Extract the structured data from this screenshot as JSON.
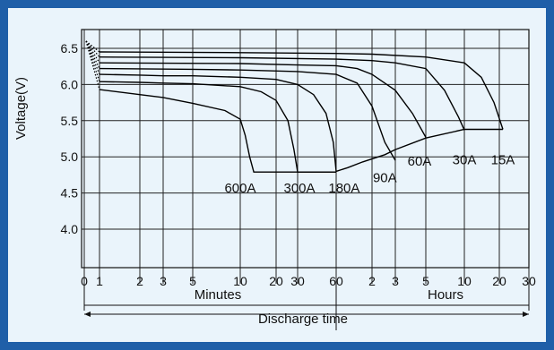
{
  "chart_data": {
    "type": "line",
    "ylabel": "Voltage(V)",
    "xlabel": "Discharge time",
    "x_groups": [
      {
        "label": "Minutes",
        "unit": "min"
      },
      {
        "label": "Hours",
        "unit": "h"
      }
    ],
    "y_ticks": [
      "6.5",
      "6.0",
      "5.5",
      "5.0",
      "4.5",
      "4.0"
    ],
    "x_ticks": [
      {
        "label": "0",
        "t_min": 0
      },
      {
        "label": "1",
        "t_min": 1
      },
      {
        "label": "2",
        "t_min": 2
      },
      {
        "label": "3",
        "t_min": 3
      },
      {
        "label": "5",
        "t_min": 5
      },
      {
        "label": "10",
        "t_min": 10
      },
      {
        "label": "20",
        "t_min": 20
      },
      {
        "label": "30",
        "t_min": 30
      },
      {
        "label": "60",
        "t_min": 60
      },
      {
        "label": "2",
        "t_min": 120
      },
      {
        "label": "3",
        "t_min": 180
      },
      {
        "label": "5",
        "t_min": 300
      },
      {
        "label": "10",
        "t_min": 600
      },
      {
        "label": "20",
        "t_min": 1200
      },
      {
        "label": "30",
        "t_min": 1800
      }
    ],
    "series": [
      {
        "name": "600A",
        "points": [
          [
            1,
            5.93
          ],
          [
            2,
            5.86
          ],
          [
            3,
            5.82
          ],
          [
            5,
            5.74
          ],
          [
            8,
            5.64
          ],
          [
            10,
            5.52
          ],
          [
            11,
            5.3
          ],
          [
            12,
            5.0
          ],
          [
            13,
            4.79
          ],
          [
            20,
            4.79
          ],
          [
            30,
            4.79
          ],
          [
            60,
            4.79
          ]
        ]
      },
      {
        "name": "300A",
        "points": [
          [
            1,
            6.04
          ],
          [
            2,
            6.03
          ],
          [
            3,
            6.02
          ],
          [
            5,
            6.01
          ],
          [
            10,
            5.97
          ],
          [
            15,
            5.9
          ],
          [
            20,
            5.78
          ],
          [
            25,
            5.5
          ],
          [
            28,
            5.1
          ],
          [
            30,
            4.79
          ],
          [
            60,
            4.79
          ]
        ]
      },
      {
        "name": "180A",
        "points": [
          [
            1,
            6.14
          ],
          [
            2,
            6.13
          ],
          [
            3,
            6.12
          ],
          [
            5,
            6.12
          ],
          [
            10,
            6.1
          ],
          [
            20,
            6.07
          ],
          [
            30,
            6.0
          ],
          [
            40,
            5.86
          ],
          [
            50,
            5.6
          ],
          [
            57,
            5.2
          ],
          [
            60,
            4.8
          ]
        ]
      },
      {
        "name": "90A",
        "points": [
          [
            1,
            6.22
          ],
          [
            5,
            6.21
          ],
          [
            10,
            6.2
          ],
          [
            30,
            6.18
          ],
          [
            60,
            6.14
          ],
          [
            90,
            6.02
          ],
          [
            120,
            5.7
          ],
          [
            150,
            5.2
          ],
          [
            180,
            4.95
          ]
        ]
      },
      {
        "name": "60A",
        "points": [
          [
            1,
            6.3
          ],
          [
            10,
            6.29
          ],
          [
            30,
            6.27
          ],
          [
            60,
            6.26
          ],
          [
            90,
            6.22
          ],
          [
            120,
            6.14
          ],
          [
            180,
            5.92
          ],
          [
            240,
            5.6
          ],
          [
            300,
            5.27
          ]
        ]
      },
      {
        "name": "30A",
        "points": [
          [
            1,
            6.38
          ],
          [
            10,
            6.37
          ],
          [
            60,
            6.35
          ],
          [
            120,
            6.33
          ],
          [
            180,
            6.3
          ],
          [
            300,
            6.22
          ],
          [
            420,
            5.92
          ],
          [
            540,
            5.55
          ],
          [
            600,
            5.37
          ]
        ]
      },
      {
        "name": "15A",
        "points": [
          [
            1,
            6.45
          ],
          [
            10,
            6.44
          ],
          [
            60,
            6.43
          ],
          [
            120,
            6.42
          ],
          [
            300,
            6.38
          ],
          [
            600,
            6.3
          ],
          [
            840,
            6.1
          ],
          [
            1080,
            5.75
          ],
          [
            1260,
            5.38
          ]
        ]
      },
      {
        "name": "final",
        "points": [
          [
            60,
            4.8
          ],
          [
            75,
            4.85
          ],
          [
            100,
            4.93
          ],
          [
            150,
            5.03
          ],
          [
            180,
            5.1
          ],
          [
            300,
            5.26
          ],
          [
            600,
            5.38
          ],
          [
            1260,
            5.38
          ]
        ]
      }
    ],
    "labels": [
      {
        "text": "600A",
        "t_min": 10,
        "v": 4.73
      },
      {
        "text": "300A",
        "t_min": 31,
        "v": 4.73
      },
      {
        "text": "180A",
        "t_min": 70,
        "v": 4.73
      },
      {
        "text": "90A",
        "t_min": 150,
        "v": 4.87
      },
      {
        "text": "60A",
        "t_min": 270,
        "v": 5.1
      },
      {
        "text": "30A",
        "t_min": 600,
        "v": 5.12
      },
      {
        "text": "15A",
        "t_min": 1260,
        "v": 5.12
      }
    ],
    "ylim": [
      3.5,
      6.6
    ],
    "grid": true
  }
}
